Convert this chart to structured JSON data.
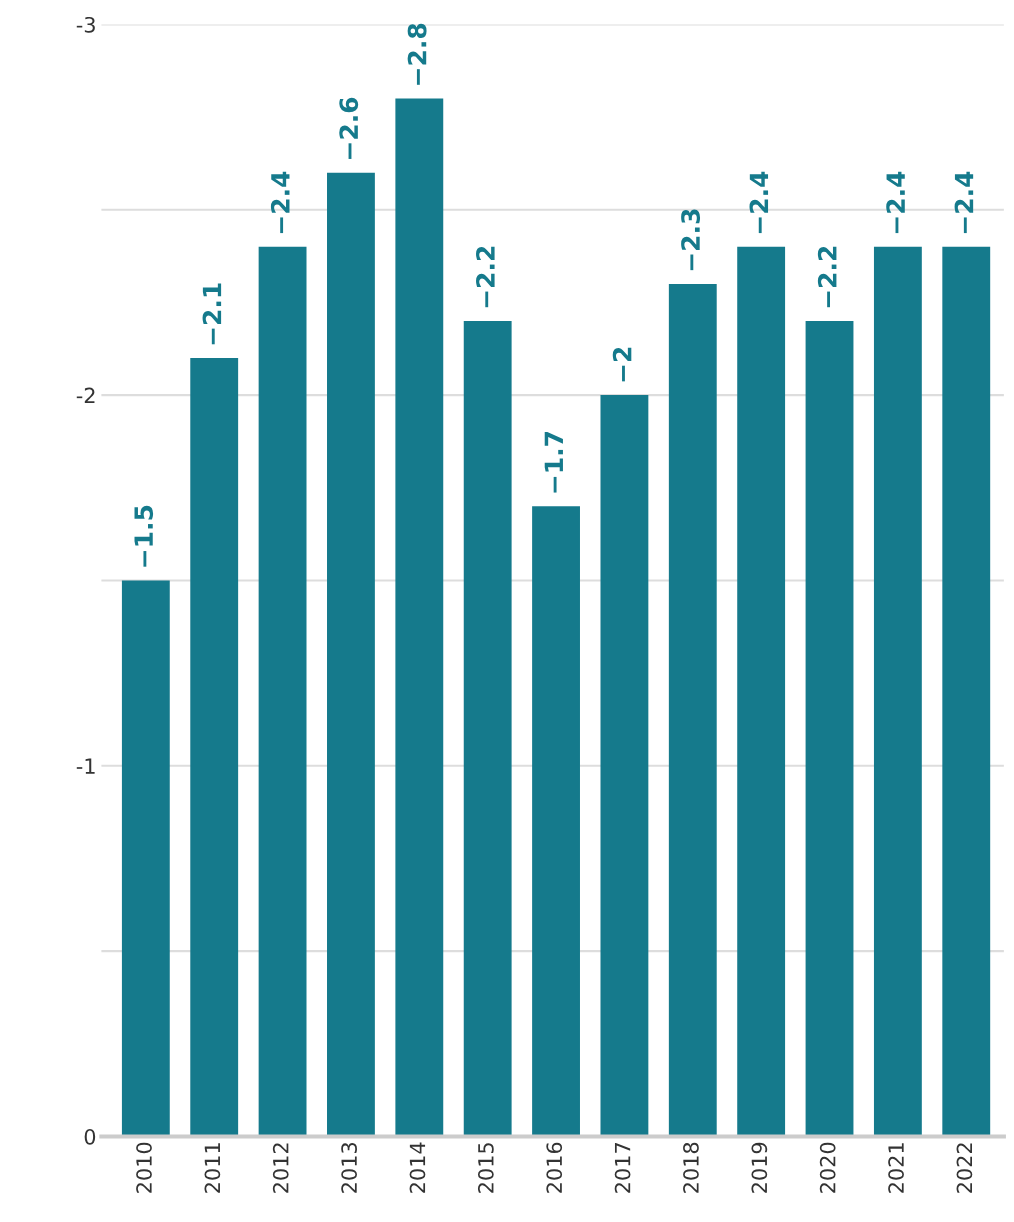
{
  "chart_data": {
    "type": "bar",
    "categories": [
      "2010",
      "2011",
      "2012",
      "2013",
      "2014",
      "2015",
      "2016",
      "2017",
      "2018",
      "2019",
      "2020",
      "2021",
      "2022"
    ],
    "values": [
      -1.5,
      -2.1,
      -2.4,
      -2.6,
      -2.8,
      -2.2,
      -1.7,
      -2,
      -2.3,
      -2.4,
      -2.2,
      -2.4,
      -2.4
    ],
    "value_labels": [
      "−1.5",
      "−2.1",
      "−2.4",
      "−2.6",
      "−2.8",
      "−2.2",
      "−1.7",
      "−2",
      "−2.3",
      "−2.4",
      "−2.2",
      "−2.4",
      "−2.4"
    ],
    "color": "#157a8c",
    "ylim": [
      0,
      -3
    ],
    "yticks": [
      0,
      {
        "value": -0.5,
        "label": null
      },
      -1,
      {
        "value": -1.5,
        "label": null
      },
      -2,
      {
        "value": -2.5,
        "label": null
      },
      -3
    ],
    "grid": "y"
  }
}
